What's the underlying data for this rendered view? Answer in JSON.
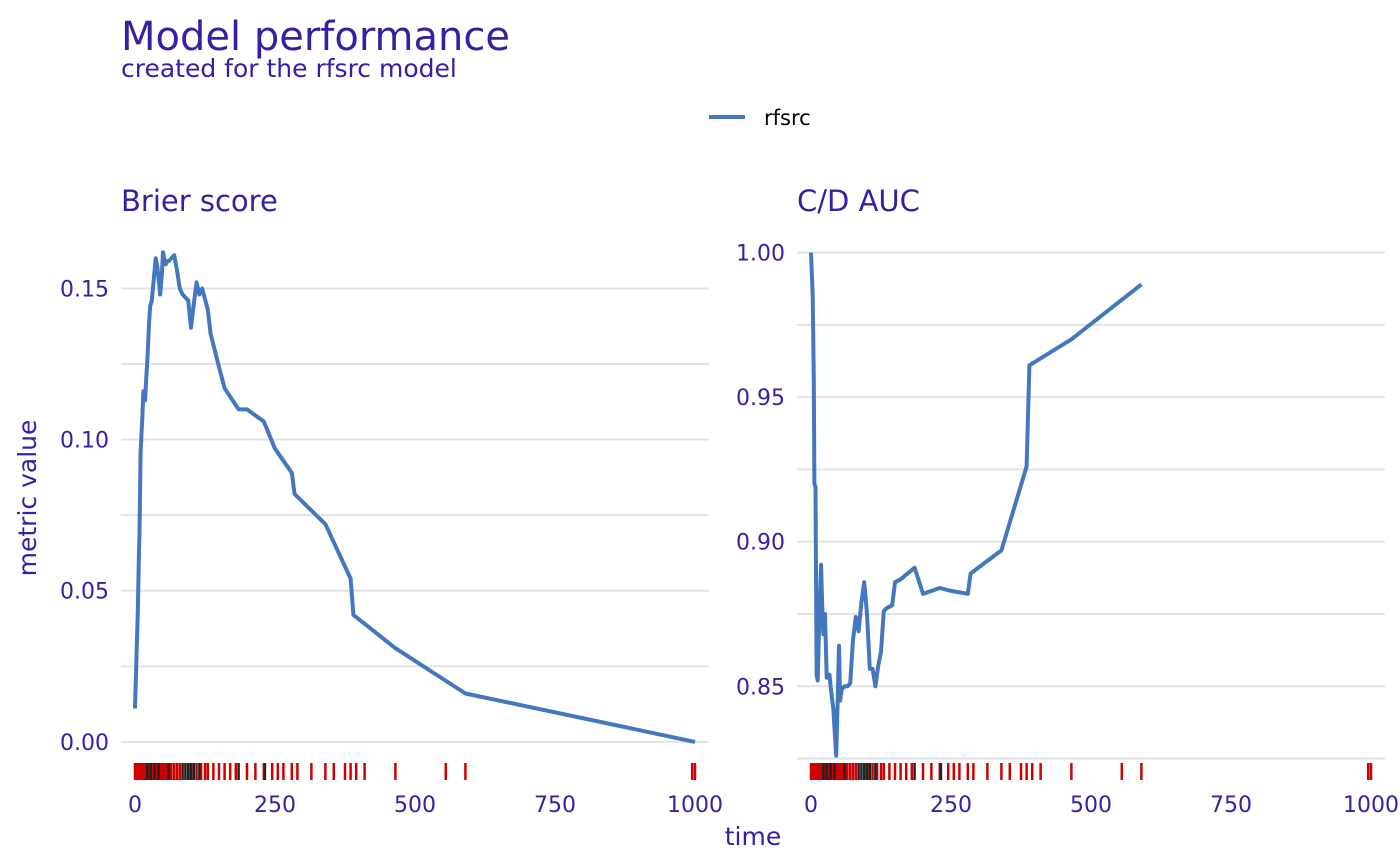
{
  "title": "Model performance",
  "subtitle": "created for the rfsrc model",
  "legend": {
    "entries": [
      "rfsrc"
    ],
    "placement": "top-center"
  },
  "colors": {
    "text": "#371ea3",
    "line": "#4378bf",
    "rug_event": "#d00000",
    "rug_censored": "#222222",
    "grid": "#e3e3e6"
  },
  "chart_data": [
    {
      "type": "line",
      "title": "Brier score",
      "xlabel": "time",
      "ylabel": "metric value",
      "xlim": [
        -25,
        1025
      ],
      "ylim": [
        -0.006,
        0.17
      ],
      "x_ticks": [
        0,
        250,
        500,
        750,
        1000
      ],
      "y_ticks": [
        0.0,
        0.05,
        0.1,
        0.15
      ],
      "y_tick_labels": [
        "0.00",
        "0.05",
        "0.10",
        "0.15"
      ],
      "series": [
        {
          "name": "rfsrc",
          "x": [
            0,
            5,
            7,
            8,
            10,
            13,
            15,
            18,
            20,
            22,
            25,
            27,
            30,
            33,
            37,
            40,
            45,
            48,
            50,
            52,
            55,
            57,
            60,
            65,
            70,
            75,
            80,
            85,
            95,
            100,
            105,
            110,
            115,
            120,
            130,
            135,
            150,
            160,
            185,
            200,
            230,
            250,
            280,
            285,
            340,
            385,
            390,
            465,
            590,
            1000
          ],
          "y": [
            0.011,
            0.043,
            0.062,
            0.069,
            0.096,
            0.107,
            0.116,
            0.113,
            0.12,
            0.126,
            0.138,
            0.144,
            0.146,
            0.152,
            0.16,
            0.157,
            0.148,
            0.155,
            0.162,
            0.16,
            0.158,
            0.159,
            0.159,
            0.16,
            0.161,
            0.156,
            0.15,
            0.148,
            0.146,
            0.137,
            0.145,
            0.152,
            0.148,
            0.15,
            0.143,
            0.135,
            0.124,
            0.117,
            0.11,
            0.11,
            0.106,
            0.097,
            0.089,
            0.082,
            0.072,
            0.054,
            0.042,
            0.031,
            0.016,
            0.0
          ]
        }
      ],
      "rug_event": [
        0,
        3,
        6,
        10,
        12,
        15,
        18,
        20,
        23,
        25,
        27,
        30,
        33,
        35,
        38,
        42,
        45,
        48,
        50,
        52,
        55,
        58,
        62,
        65,
        70,
        75,
        80,
        95,
        100,
        105,
        110,
        118,
        125,
        130,
        140,
        150,
        160,
        170,
        180,
        200,
        215,
        230,
        245,
        255,
        265,
        280,
        290,
        315,
        340,
        355,
        375,
        385,
        395,
        410,
        465,
        555,
        590,
        995,
        1000
      ],
      "rug_censored": [
        22,
        28,
        35,
        42,
        60,
        85,
        90,
        95,
        100,
        105,
        115,
        185,
        232
      ]
    },
    {
      "type": "line",
      "title": "C/D AUC",
      "xlabel": "time",
      "ylabel": "metric value",
      "xlim": [
        -25,
        1025
      ],
      "ylim": [
        0.8245,
        1.0085
      ],
      "x_ticks": [
        0,
        250,
        500,
        750,
        1000
      ],
      "y_ticks": [
        0.85,
        0.9,
        0.95,
        1.0
      ],
      "y_tick_labels": [
        "0.85",
        "0.90",
        "0.95",
        "1.00"
      ],
      "series": [
        {
          "name": "rfsrc",
          "x": [
            0,
            3,
            5,
            6,
            8,
            10,
            12,
            15,
            18,
            20,
            22,
            25,
            28,
            30,
            33,
            35,
            38,
            40,
            43,
            45,
            48,
            50,
            52,
            55,
            60,
            65,
            70,
            75,
            80,
            85,
            90,
            95,
            100,
            105,
            110,
            115,
            120,
            125,
            130,
            135,
            145,
            150,
            160,
            185,
            200,
            230,
            250,
            280,
            285,
            340,
            385,
            390,
            465,
            590
          ],
          "y": [
            1.0,
            0.985,
            0.956,
            0.92,
            0.919,
            0.854,
            0.852,
            0.875,
            0.892,
            0.878,
            0.868,
            0.875,
            0.853,
            0.853,
            0.854,
            0.85,
            0.845,
            0.842,
            0.832,
            0.826,
            0.848,
            0.864,
            0.845,
            0.849,
            0.85,
            0.85,
            0.851,
            0.866,
            0.874,
            0.869,
            0.879,
            0.886,
            0.875,
            0.856,
            0.856,
            0.85,
            0.857,
            0.862,
            0.876,
            0.877,
            0.878,
            0.886,
            0.887,
            0.891,
            0.882,
            0.884,
            0.883,
            0.882,
            0.889,
            0.897,
            0.926,
            0.961,
            0.97,
            0.989
          ]
        }
      ],
      "rug_event": [
        0,
        3,
        6,
        10,
        12,
        15,
        18,
        20,
        23,
        25,
        27,
        30,
        33,
        35,
        38,
        42,
        45,
        48,
        50,
        52,
        55,
        58,
        62,
        65,
        70,
        75,
        80,
        95,
        100,
        105,
        110,
        118,
        125,
        130,
        140,
        150,
        160,
        170,
        180,
        200,
        215,
        230,
        245,
        255,
        265,
        280,
        290,
        315,
        340,
        355,
        375,
        385,
        395,
        410,
        465,
        555,
        590,
        995,
        1000
      ],
      "rug_censored": [
        22,
        28,
        35,
        42,
        60,
        85,
        90,
        95,
        100,
        105,
        115,
        185,
        232
      ]
    }
  ]
}
